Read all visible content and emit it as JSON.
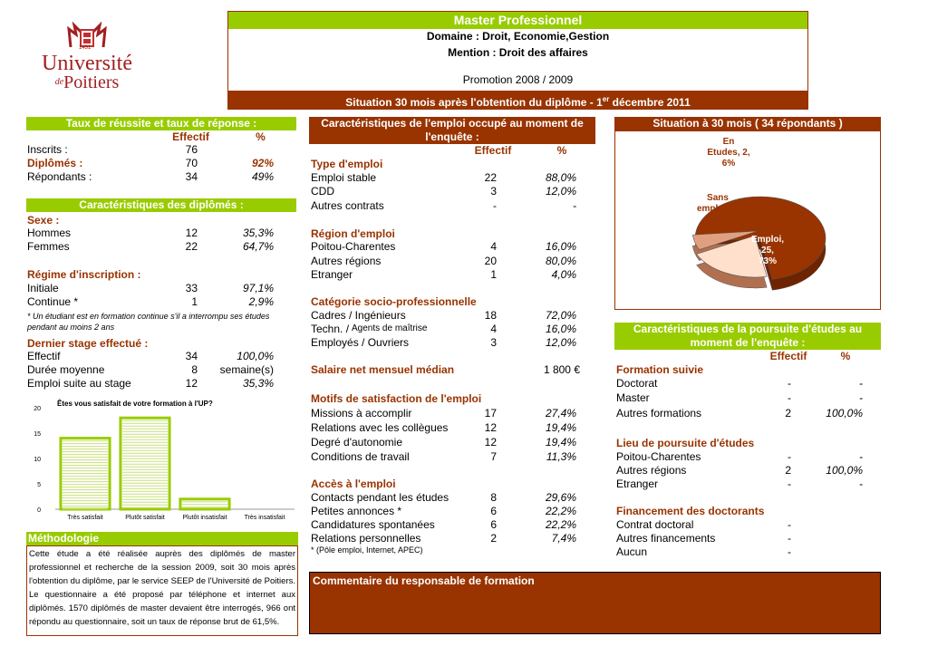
{
  "logo": {
    "year": "1431",
    "line1": "Université",
    "de": "de",
    "line2": "Poitiers"
  },
  "header": {
    "title": "Master Professionnel",
    "domaine": "Domaine : Droit, Economie,Gestion",
    "mention": "Mention : Droit des affaires",
    "promotion": "Promotion 2008 / 2009",
    "situation_a": "Situation 30 mois après l'obtention du diplôme - 1",
    "situation_sup": "er",
    "situation_b": " décembre 2011"
  },
  "taux": {
    "title": "Taux de réussite et taux de réponse :",
    "h_effectif": "Effectif",
    "h_pct": "%",
    "rows": [
      {
        "label": "Inscrits :",
        "eff": "76",
        "pct": ""
      },
      {
        "label": "Diplômés :",
        "eff": "70",
        "pct": "92%"
      },
      {
        "label": "Répondants :",
        "eff": "34",
        "pct": "49%"
      }
    ]
  },
  "diplomes": {
    "title": "Caractéristiques des diplômés :",
    "sexe_title": "Sexe :",
    "sexe": [
      {
        "label": "Hommes",
        "eff": "12",
        "pct": "35,3%"
      },
      {
        "label": "Femmes",
        "eff": "22",
        "pct": "64,7%"
      }
    ],
    "regime_title": "Régime d'inscription :",
    "regime": [
      {
        "label": "Initiale",
        "eff": "33",
        "pct": "97,1%"
      },
      {
        "label": "Continue *",
        "eff": "1",
        "pct": "2,9%"
      }
    ],
    "note1": "* Un étudiant est en formation continue s'il a interrompu ses études",
    "note2": "pendant au moins 2 ans",
    "stage_title": "Dernier stage effectué :",
    "stage": [
      {
        "label": "Effectif",
        "eff": "34",
        "pct": "100,0%"
      },
      {
        "label": "Durée moyenne",
        "eff": "8",
        "pct": "semaine(s)"
      },
      {
        "label": "Emploi suite au stage",
        "eff": "12",
        "pct": "35,3%"
      }
    ]
  },
  "chart_data": [
    {
      "type": "bar",
      "title": "Êtes vous satisfait de votre formation à l'UP?",
      "categories": [
        "Très satisfait",
        "Plutôt satisfait",
        "Plutôt insatisfait",
        "Très insatisfait"
      ],
      "values": [
        14,
        18,
        2,
        0
      ],
      "ylim": [
        0,
        20
      ],
      "yticks": [
        "0",
        "5",
        "10",
        "15",
        "20"
      ],
      "color": "#99cc00"
    },
    {
      "type": "pie",
      "title": "Situation à 30 mois ( 34 répondants )",
      "labels": [
        "Emploi",
        "Sans emploi",
        "En Etudes"
      ],
      "values": [
        25,
        7,
        2
      ],
      "percents": [
        "73%",
        "21%",
        "6%"
      ],
      "label_text": [
        "Emploi, 25, 73%",
        "Sans emploi, 7, 21%",
        "En Etudes, 2, 6%"
      ],
      "colors": [
        "#993300",
        "#ffe0cc",
        "#e0a080"
      ]
    }
  ],
  "methodo": {
    "title": "Méthodologie",
    "text": "Cette étude a été réalisée auprès des diplômés de master professionnel et recherche de la session 2009, soit 30 mois après l'obtention du diplôme, par le service SEEP de l'Université de Poitiers. Le questionnaire a été proposé par téléphone et internet aux diplômés. 1570 diplômés de master devaient être interrogés, 966 ont répondu au questionnaire, soit un taux de réponse brut de 61,5%."
  },
  "emploi": {
    "title": "Caractéristiques de l'emploi occupé au moment de l'enquête :",
    "h_effectif": "Effectif",
    "h_pct": "%",
    "type_title": "Type d'emploi",
    "type": [
      {
        "label": "Emploi stable",
        "eff": "22",
        "pct": "88,0%"
      },
      {
        "label": "CDD",
        "eff": "3",
        "pct": "12,0%"
      },
      {
        "label": "Autres contrats",
        "eff": "-",
        "pct": "-"
      }
    ],
    "region_title": "Région d'emploi",
    "region": [
      {
        "label": "Poitou-Charentes",
        "eff": "4",
        "pct": "16,0%"
      },
      {
        "label": "Autres régions",
        "eff": "20",
        "pct": "80,0%"
      },
      {
        "label": "Etranger",
        "eff": "1",
        "pct": "4,0%"
      }
    ],
    "csp_title": "Catégorie socio-professionnelle",
    "csp": [
      {
        "label": "Cadres / Ingénieurs",
        "eff": "18",
        "pct": "72,0%"
      },
      {
        "label": "Techn. / ",
        "label_small": "Agents de maîtrise",
        "eff": "4",
        "pct": "16,0%"
      },
      {
        "label": "Employés / Ouvriers",
        "eff": "3",
        "pct": "12,0%"
      }
    ],
    "salaire_label": "Salaire net mensuel médian",
    "salaire_value": "1 800 €",
    "motifs_title": "Motifs de satisfaction de l'emploi",
    "motifs": [
      {
        "label": "Missions à accomplir",
        "eff": "17",
        "pct": "27,4%"
      },
      {
        "label": "Relations avec les collègues",
        "eff": "12",
        "pct": "19,4%"
      },
      {
        "label": "Degré d'autonomie",
        "eff": "12",
        "pct": "19,4%"
      },
      {
        "label": "Conditions de travail",
        "eff": "7",
        "pct": "11,3%"
      }
    ],
    "acces_title": "Accès à l'emploi",
    "acces": [
      {
        "label": "Contacts pendant les études",
        "eff": "8",
        "pct": "29,6%"
      },
      {
        "label": "Petites annonces *",
        "eff": "6",
        "pct": "22,2%"
      },
      {
        "label": "Candidatures spontanées",
        "eff": "6",
        "pct": "22,2%"
      },
      {
        "label": "Relations personnelles",
        "eff": "2",
        "pct": "7,4%"
      }
    ],
    "acces_note": "* (Pôle emploi, Internet, APEC)"
  },
  "commentaire": {
    "title": "Commentaire du responsable de formation"
  },
  "poursuite": {
    "title": "Caractéristiques de la poursuite d'études au moment de l'enquête :",
    "h_effectif": "Effectif",
    "h_pct": "%",
    "formation_title": "Formation suivie",
    "formation": [
      {
        "label": "Doctorat",
        "eff": "-",
        "pct": "-"
      },
      {
        "label": "Master",
        "eff": "-",
        "pct": "-"
      },
      {
        "label": "Autres formations",
        "eff": "2",
        "pct": "100,0%"
      }
    ],
    "lieu_title": "Lieu de poursuite d'études",
    "lieu": [
      {
        "label": "Poitou-Charentes",
        "eff": "-",
        "pct": "-"
      },
      {
        "label": "Autres régions",
        "eff": "2",
        "pct": "100,0%"
      },
      {
        "label": "Etranger",
        "eff": "-",
        "pct": "-"
      }
    ],
    "fin_title": "Financement des doctorants",
    "fin": [
      {
        "label": "Contrat doctoral",
        "eff": "-"
      },
      {
        "label": "Autres financements",
        "eff": "-"
      },
      {
        "label": "Aucun",
        "eff": "-"
      }
    ]
  }
}
